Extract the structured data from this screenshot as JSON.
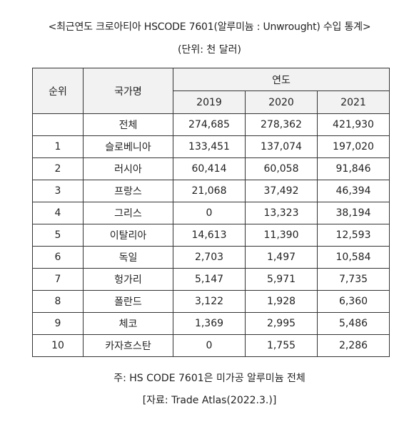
{
  "title": "<최근연도 크로아티아 HSCODE 7601(알루미늄 : Unwrought)  수입 통계>",
  "unit": "(단위: 천 달러)",
  "table": {
    "headers": {
      "rank": "순위",
      "country": "국가명",
      "year_group": "연도",
      "years": [
        "2019",
        "2020",
        "2021"
      ]
    },
    "rows": [
      {
        "rank": "",
        "country": "전체",
        "values": [
          "274,685",
          "278,362",
          "421,930"
        ]
      },
      {
        "rank": "1",
        "country": "슬로베니아",
        "values": [
          "133,451",
          "137,074",
          "197,020"
        ]
      },
      {
        "rank": "2",
        "country": "러시아",
        "values": [
          "60,414",
          "60,058",
          "91,846"
        ]
      },
      {
        "rank": "3",
        "country": "프랑스",
        "values": [
          "21,068",
          "37,492",
          "46,394"
        ]
      },
      {
        "rank": "4",
        "country": "그리스",
        "values": [
          "0",
          "13,323",
          "38,194"
        ]
      },
      {
        "rank": "5",
        "country": "이탈리아",
        "values": [
          "14,613",
          "11,390",
          "12,593"
        ]
      },
      {
        "rank": "6",
        "country": "독일",
        "values": [
          "2,703",
          "1,497",
          "10,584"
        ]
      },
      {
        "rank": "7",
        "country": "헝가리",
        "values": [
          "5,147",
          "5,971",
          "7,735"
        ]
      },
      {
        "rank": "8",
        "country": "폴란드",
        "values": [
          "3,122",
          "1,928",
          "6,360"
        ]
      },
      {
        "rank": "9",
        "country": "체코",
        "values": [
          "1,369",
          "2,995",
          "5,486"
        ]
      },
      {
        "rank": "10",
        "country": "카자흐스탄",
        "values": [
          "0",
          "1,755",
          "2,286"
        ]
      }
    ]
  },
  "note": "주: HS CODE 7601은 미가공 알루미늄 전체",
  "source": "[자료: Trade Atlas(2022.3.)]"
}
